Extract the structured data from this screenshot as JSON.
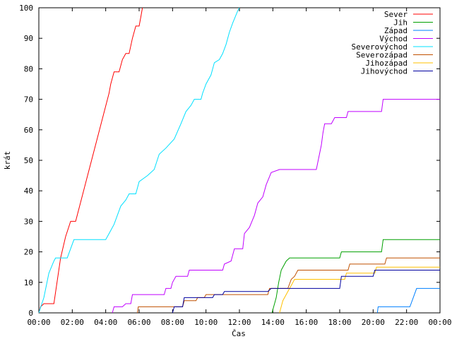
{
  "chart_data": {
    "type": "line",
    "xlabel": "Čas",
    "ylabel": "krát",
    "xlim": [
      0,
      24
    ],
    "ylim": [
      0,
      100
    ],
    "x_ticks": [
      {
        "v": 0,
        "label": "00:00"
      },
      {
        "v": 2,
        "label": "02:00"
      },
      {
        "v": 4,
        "label": "04:00"
      },
      {
        "v": 6,
        "label": "06:00"
      },
      {
        "v": 8,
        "label": "08:00"
      },
      {
        "v": 10,
        "label": "10:00"
      },
      {
        "v": 12,
        "label": "12:00"
      },
      {
        "v": 14,
        "label": "14:00"
      },
      {
        "v": 16,
        "label": "16:00"
      },
      {
        "v": 18,
        "label": "18:00"
      },
      {
        "v": 20,
        "label": "20:00"
      },
      {
        "v": 22,
        "label": "22:00"
      },
      {
        "v": 24,
        "label": "00:00"
      }
    ],
    "y_ticks": [
      0,
      10,
      20,
      30,
      40,
      50,
      60,
      70,
      80,
      90,
      100
    ],
    "grid": false,
    "legend_position": "top-right",
    "series": [
      {
        "name": "Sever",
        "color": "#ff0000",
        "points": [
          [
            0.0,
            0
          ],
          [
            0.1,
            2
          ],
          [
            0.3,
            3
          ],
          [
            0.9,
            3
          ],
          [
            1.3,
            18
          ],
          [
            1.6,
            25
          ],
          [
            1.9,
            30
          ],
          [
            2.2,
            30
          ],
          [
            4.2,
            72
          ],
          [
            4.3,
            75
          ],
          [
            4.5,
            79
          ],
          [
            4.8,
            79
          ],
          [
            5.0,
            83
          ],
          [
            5.2,
            85
          ],
          [
            5.4,
            85
          ],
          [
            5.6,
            90
          ],
          [
            5.8,
            94
          ],
          [
            6.0,
            94
          ],
          [
            6.1,
            97
          ],
          [
            6.2,
            100
          ]
        ]
      },
      {
        "name": "Jih",
        "color": "#00a000",
        "points": [
          [
            13.95,
            0
          ],
          [
            14.05,
            2
          ],
          [
            14.2,
            5
          ],
          [
            14.35,
            10
          ],
          [
            14.5,
            14
          ],
          [
            14.8,
            17
          ],
          [
            15.0,
            18
          ],
          [
            18.0,
            18
          ],
          [
            18.1,
            20
          ],
          [
            20.5,
            20
          ],
          [
            20.6,
            24
          ],
          [
            24,
            24
          ]
        ]
      },
      {
        "name": "Západ",
        "color": "#0080ff",
        "points": [
          [
            20.25,
            0
          ],
          [
            20.3,
            2
          ],
          [
            22.2,
            2
          ],
          [
            22.6,
            8
          ],
          [
            24,
            8
          ]
        ]
      },
      {
        "name": "Východ",
        "color": "#c000ff",
        "points": [
          [
            4.4,
            0
          ],
          [
            4.5,
            2
          ],
          [
            5.0,
            2
          ],
          [
            5.2,
            3
          ],
          [
            5.5,
            3
          ],
          [
            5.6,
            6
          ],
          [
            7.5,
            6
          ],
          [
            7.6,
            8
          ],
          [
            7.9,
            8
          ],
          [
            8.0,
            10
          ],
          [
            8.2,
            12
          ],
          [
            8.9,
            12
          ],
          [
            9.0,
            14
          ],
          [
            11.0,
            14
          ],
          [
            11.1,
            16
          ],
          [
            11.5,
            17
          ],
          [
            11.7,
            21
          ],
          [
            12.2,
            21
          ],
          [
            12.3,
            26
          ],
          [
            12.6,
            28
          ],
          [
            12.9,
            32
          ],
          [
            13.1,
            36
          ],
          [
            13.4,
            38
          ],
          [
            13.6,
            42
          ],
          [
            13.9,
            46
          ],
          [
            14.4,
            47
          ],
          [
            16.6,
            47
          ],
          [
            16.9,
            55
          ],
          [
            17.0,
            59
          ],
          [
            17.1,
            62
          ],
          [
            17.5,
            62
          ],
          [
            17.7,
            64
          ],
          [
            18.4,
            64
          ],
          [
            18.5,
            66
          ],
          [
            20.5,
            66
          ],
          [
            20.6,
            70
          ],
          [
            24,
            70
          ]
        ]
      },
      {
        "name": "Severovýchod",
        "color": "#00e0ff",
        "points": [
          [
            0.0,
            0
          ],
          [
            0.3,
            5
          ],
          [
            0.6,
            13
          ],
          [
            0.9,
            17
          ],
          [
            1.0,
            18
          ],
          [
            1.7,
            18
          ],
          [
            2.1,
            24
          ],
          [
            4.0,
            24
          ],
          [
            4.2,
            26
          ],
          [
            4.5,
            29
          ],
          [
            4.7,
            32
          ],
          [
            4.9,
            35
          ],
          [
            5.2,
            37
          ],
          [
            5.4,
            39
          ],
          [
            5.8,
            39
          ],
          [
            6.0,
            43
          ],
          [
            6.5,
            45
          ],
          [
            6.9,
            47
          ],
          [
            7.2,
            52
          ],
          [
            7.6,
            54
          ],
          [
            8.1,
            57
          ],
          [
            8.5,
            62
          ],
          [
            8.8,
            66
          ],
          [
            9.1,
            68
          ],
          [
            9.3,
            70
          ],
          [
            9.7,
            70
          ],
          [
            9.8,
            72
          ],
          [
            10.0,
            75
          ],
          [
            10.3,
            78
          ],
          [
            10.5,
            82
          ],
          [
            10.8,
            83
          ],
          [
            11.0,
            85
          ],
          [
            11.2,
            88
          ],
          [
            11.4,
            92
          ],
          [
            11.6,
            95
          ],
          [
            11.9,
            99
          ],
          [
            12.0,
            100
          ]
        ]
      },
      {
        "name": "Severozápad",
        "color": "#c05000",
        "points": [
          [
            5.9,
            0
          ],
          [
            5.95,
            2
          ],
          [
            8.6,
            2
          ],
          [
            8.7,
            4
          ],
          [
            9.4,
            4
          ],
          [
            9.5,
            5
          ],
          [
            9.9,
            5
          ],
          [
            10.0,
            6
          ],
          [
            13.7,
            6
          ],
          [
            13.8,
            8
          ],
          [
            14.9,
            8
          ],
          [
            15.1,
            11
          ],
          [
            15.3,
            12
          ],
          [
            15.5,
            14
          ],
          [
            18.5,
            14
          ],
          [
            18.6,
            16
          ],
          [
            20.7,
            16
          ],
          [
            20.8,
            18
          ],
          [
            24,
            18
          ]
        ]
      },
      {
        "name": "Jihozápad",
        "color": "#ffc000",
        "points": [
          [
            14.4,
            0
          ],
          [
            14.6,
            4
          ],
          [
            14.9,
            7
          ],
          [
            15.1,
            9
          ],
          [
            15.3,
            11
          ],
          [
            18.3,
            11
          ],
          [
            18.4,
            13
          ],
          [
            20.1,
            13
          ],
          [
            20.2,
            15
          ],
          [
            24,
            15
          ]
        ]
      },
      {
        "name": "Jihovýchod",
        "color": "#0000a0",
        "points": [
          [
            8.0,
            0
          ],
          [
            8.1,
            2
          ],
          [
            8.6,
            2
          ],
          [
            8.7,
            5
          ],
          [
            10.4,
            5
          ],
          [
            10.5,
            6
          ],
          [
            11.0,
            6
          ],
          [
            11.1,
            7
          ],
          [
            13.7,
            7
          ],
          [
            13.9,
            8
          ],
          [
            18.0,
            8
          ],
          [
            18.1,
            12
          ],
          [
            20.0,
            12
          ],
          [
            20.1,
            14
          ],
          [
            24,
            14
          ]
        ]
      }
    ]
  }
}
